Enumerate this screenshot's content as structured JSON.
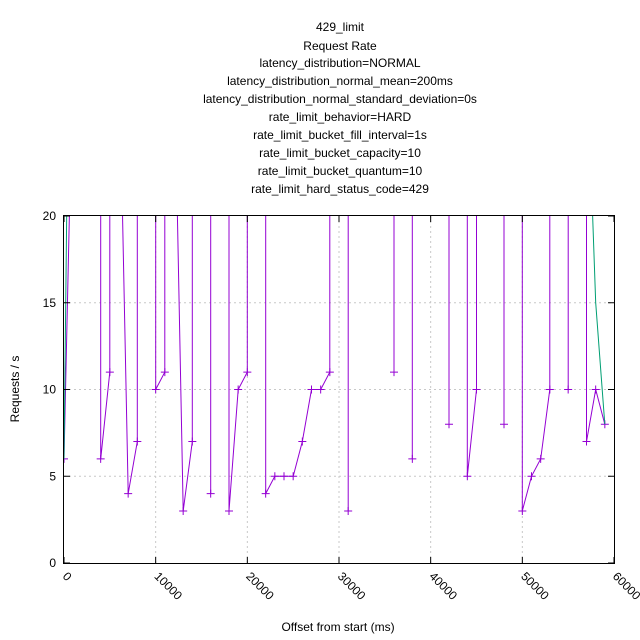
{
  "chart_data": {
    "type": "line",
    "title_lines": [
      "429_limit",
      "Request Rate",
      "latency_distribution=NORMAL",
      "latency_distribution_normal_mean=200ms",
      "latency_distribution_normal_standard_deviation=0s",
      "rate_limit_behavior=HARD",
      "rate_limit_bucket_fill_interval=1s",
      "rate_limit_bucket_capacity=10",
      "rate_limit_bucket_quantum=10",
      "rate_limit_hard_status_code=429"
    ],
    "xlabel": "Offset from start (ms)",
    "ylabel": "Requests / s",
    "xlim": [
      0,
      60000
    ],
    "ylim": [
      0,
      20
    ],
    "x_ticks": [
      0,
      10000,
      20000,
      30000,
      40000,
      50000,
      60000
    ],
    "y_ticks": [
      0,
      5,
      10,
      15,
      20
    ],
    "grid": true,
    "series": [
      {
        "color": "#9400d3",
        "marker": "plus",
        "points": [
          [
            0,
            6
          ],
          [
            1000,
            30
          ],
          [
            4000,
            30
          ],
          [
            4000,
            6
          ],
          [
            5000,
            11
          ],
          [
            5000,
            30
          ],
          [
            6000,
            30
          ],
          [
            7000,
            4
          ],
          [
            8000,
            7
          ],
          [
            8000,
            30
          ],
          [
            10000,
            30
          ],
          [
            10000,
            10
          ],
          [
            11000,
            11
          ],
          [
            11000,
            30
          ],
          [
            12000,
            30
          ],
          [
            13000,
            3
          ],
          [
            14000,
            7
          ],
          [
            14000,
            30
          ],
          [
            16000,
            30
          ],
          [
            16000,
            4
          ],
          [
            16000,
            30
          ],
          [
            18000,
            30
          ],
          [
            18000,
            3
          ],
          [
            19000,
            10
          ],
          [
            20000,
            11
          ],
          [
            20000,
            30
          ],
          [
            22000,
            30
          ],
          [
            22000,
            4
          ],
          [
            23000,
            5
          ],
          [
            24000,
            5
          ],
          [
            25000,
            5
          ],
          [
            26000,
            7
          ],
          [
            27000,
            10
          ],
          [
            28000,
            10
          ],
          [
            29000,
            11
          ],
          [
            29000,
            30
          ],
          [
            31000,
            30
          ],
          [
            31000,
            3
          ],
          [
            31000,
            30
          ],
          [
            36000,
            30
          ],
          [
            36000,
            11
          ],
          [
            36000,
            30
          ],
          [
            38000,
            30
          ],
          [
            38000,
            6
          ],
          [
            38000,
            30
          ],
          [
            42000,
            30
          ],
          [
            42000,
            8
          ],
          [
            42000,
            30
          ],
          [
            44000,
            30
          ],
          [
            44000,
            5
          ],
          [
            45000,
            10
          ],
          [
            45000,
            30
          ],
          [
            48000,
            30
          ],
          [
            48000,
            8
          ],
          [
            48000,
            30
          ],
          [
            50000,
            30
          ],
          [
            50000,
            3
          ],
          [
            51000,
            5
          ],
          [
            52000,
            6
          ],
          [
            53000,
            10
          ],
          [
            53000,
            30
          ],
          [
            55000,
            30
          ],
          [
            55000,
            10
          ],
          [
            55000,
            30
          ],
          [
            57000,
            30
          ],
          [
            57000,
            7
          ],
          [
            58000,
            10
          ],
          [
            59000,
            8
          ]
        ]
      },
      {
        "color": "#009e73",
        "marker": "none",
        "points": [
          [
            0,
            6
          ],
          [
            500,
            30
          ],
          [
            57000,
            30
          ],
          [
            58000,
            15
          ],
          [
            59000,
            8
          ]
        ]
      }
    ]
  }
}
